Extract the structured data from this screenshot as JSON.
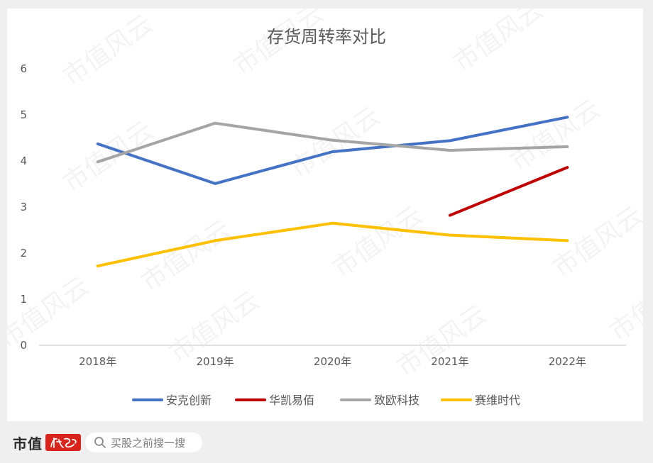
{
  "chart_data": {
    "type": "line",
    "title": "存货周转率对比",
    "categories": [
      "2018年",
      "2019年",
      "2020年",
      "2021年",
      "2022年"
    ],
    "y_ticks": [
      "0",
      "1",
      "2",
      "3",
      "4",
      "5",
      "6"
    ],
    "ylim": [
      0,
      6
    ],
    "grid": false,
    "legend_position": "bottom",
    "series": [
      {
        "name": "安克创新",
        "color": "#4472c4",
        "values": [
          4.37,
          3.51,
          4.2,
          4.44,
          4.95
        ]
      },
      {
        "name": "华凯易佰",
        "color": "#c00000",
        "values": [
          null,
          null,
          null,
          2.82,
          3.86
        ]
      },
      {
        "name": "致欧科技",
        "color": "#a5a5a5",
        "values": [
          3.98,
          4.82,
          4.45,
          4.23,
          4.31
        ]
      },
      {
        "name": "赛维时代",
        "color": "#ffc000",
        "values": [
          1.72,
          2.27,
          2.65,
          2.39,
          2.27
        ]
      }
    ]
  },
  "watermark": "市值风云",
  "footer": {
    "brand": "市值",
    "search_placeholder": "买股之前搜一搜"
  }
}
